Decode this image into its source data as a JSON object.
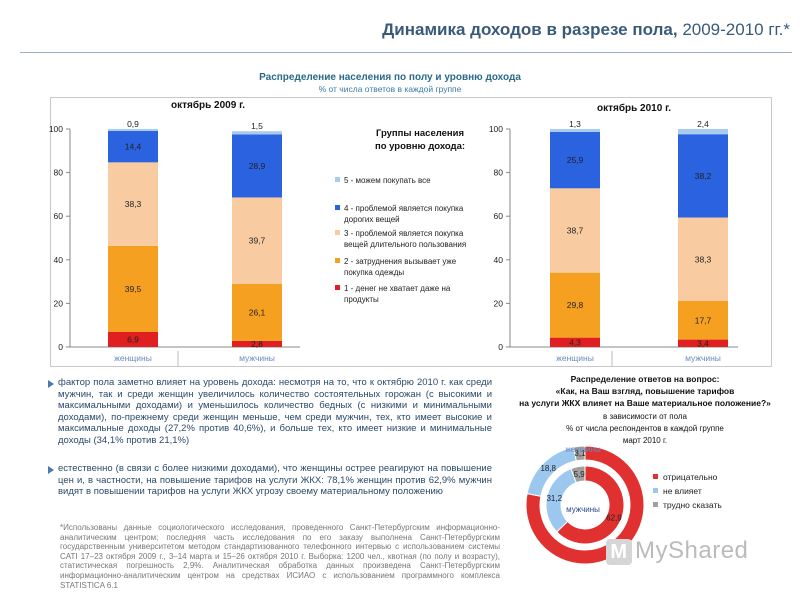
{
  "header": {
    "title_bold": "Динамика доходов в разрезе пола,",
    "title_rest": "2009-2010 гг.*",
    "subtitle": "Распределение населения по полу и уровню дохода",
    "subtitle_note": "% от числа ответов в каждой группе"
  },
  "chart_data": [
    {
      "type": "bar",
      "stacked": true,
      "title": "октябрь 2009 г.",
      "categories": [
        "женщины",
        "мужчины"
      ],
      "ylim": [
        0,
        100
      ],
      "yticks": [
        0,
        20,
        40,
        60,
        80,
        100
      ],
      "series": [
        {
          "name": "1 - денег не хватает даже на продукты",
          "values": [
            6.9,
            2.8
          ],
          "labels": [
            "6,9",
            "2,8"
          ]
        },
        {
          "name": "2 - затруднения вызывает уже покупка одежды",
          "values": [
            39.5,
            26.1
          ],
          "labels": [
            "39,5",
            "26,1"
          ]
        },
        {
          "name": "3 - проблемой является покупка вещей длительного пользования",
          "values": [
            38.3,
            39.7
          ],
          "labels": [
            "38,3",
            "39,7"
          ]
        },
        {
          "name": "4 - проблемой является покупка дорогих вещей",
          "values": [
            14.4,
            28.9
          ],
          "labels": [
            "14,4",
            "28,9"
          ]
        },
        {
          "name": "5 - можем покупать все",
          "values": [
            0.9,
            1.5
          ],
          "labels": [
            "0,9",
            "1,5"
          ]
        }
      ]
    },
    {
      "type": "bar",
      "stacked": true,
      "title": "октябрь 2010 г.",
      "categories": [
        "женщины",
        "мужчины"
      ],
      "ylim": [
        0,
        100
      ],
      "yticks": [
        0,
        20,
        40,
        60,
        80,
        100
      ],
      "series": [
        {
          "name": "1 - денег не хватает даже на продукты",
          "values": [
            4.3,
            3.4
          ],
          "labels": [
            "4,3",
            "3,4"
          ]
        },
        {
          "name": "2 - затруднения вызывает уже покупка одежды",
          "values": [
            29.8,
            17.7
          ],
          "labels": [
            "29,8",
            "17,7"
          ]
        },
        {
          "name": "3 - проблемой является покупка вещей длительного пользования",
          "values": [
            38.7,
            38.3
          ],
          "labels": [
            "38,7",
            "38,3"
          ]
        },
        {
          "name": "4 - проблемой является покупка дорогих вещей",
          "values": [
            25.9,
            38.2
          ],
          "labels": [
            "25,9",
            "38,2"
          ]
        },
        {
          "name": "5 - можем покупать все",
          "values": [
            1.3,
            2.4
          ],
          "labels": [
            "1,3",
            "2,4"
          ]
        }
      ]
    },
    {
      "type": "pie",
      "variant": "nested-donut",
      "title_lines": [
        "Распределение ответов на вопрос:",
        "«Как, на Ваш взгляд, повышение тарифов",
        "на услуги ЖКХ влияет на Ваше материальное положение?»",
        "в зависимости от пола",
        "% от числа респондентов в каждой группе",
        "март 2010 г."
      ],
      "series": [
        {
          "name": "женщины",
          "values": [
            78.1,
            18.8,
            3.1
          ],
          "labels": [
            "78,1",
            "18,8",
            "3,1"
          ]
        },
        {
          "name": "мужчины",
          "values": [
            62.9,
            31.2,
            5.9
          ],
          "labels": [
            "62,9",
            "31,2",
            "5,9"
          ]
        }
      ],
      "legend": [
        "отрицательно",
        "не влияет",
        "трудно сказать"
      ]
    }
  ],
  "colors": {
    "s1": "#e02020",
    "s2": "#f5a020",
    "s3": "#f8cca0",
    "s4": "#2a62e0",
    "s5": "#a8ccf0",
    "neg": "#e03030",
    "none": "#9cc8f0",
    "hard": "#a0a0a0",
    "category_text": "#6a8ac0"
  },
  "legend_title": "Группы населения по уровню дохода:",
  "paragraphs": [
    "фактор пола заметно влияет на уровень дохода: несмотря на то, что к октябрю 2010 г. как среди мужчин, так и среди женщин увеличилось количество состоятельных горожан (с высокими и максимальными доходами) и уменьшилось количество бедных (с низкими и минимальными доходами), по-прежнему среди женщин меньше, чем среди мужчин, тех, кто имеет высокие и максимальные доходы (27,2% против 40,6%), и больше тех, кто имеет низкие и минимальные доходы (34,1% против 21,1%)",
    "естественно (в связи с более низкими доходами), что женщины острее реагируют на повышение цен и, в частности, на повышение тарифов на услуги ЖКХ: 78,1% женщин против 62,9% мужчин видят в повышении тарифов на услуги ЖКХ угрозу своему материальному положению"
  ],
  "footnote": "*Использованы данные социологического исследования, проведенного Санкт-Петербургским информационно-аналитическим центром; последняя часть исследования по его заказу выполнена Санкт-Петербургским государственным университетом методом стандартизованного телефонного интервью с использованием системы CATI 17–23 октября 2009 г., 3–14 марта и 15–26 октября 2010 г. Выборка: 1200 чел., квотная (по полу и возрасту), статистическая погрешность 2,9%. Аналитическая обработка данных произведена Санкт-Петербургским информационно-аналитическим центром на средствах ИСИАО с использованием программного комплекса STATISTICA 6.1",
  "watermark": "MyShared"
}
